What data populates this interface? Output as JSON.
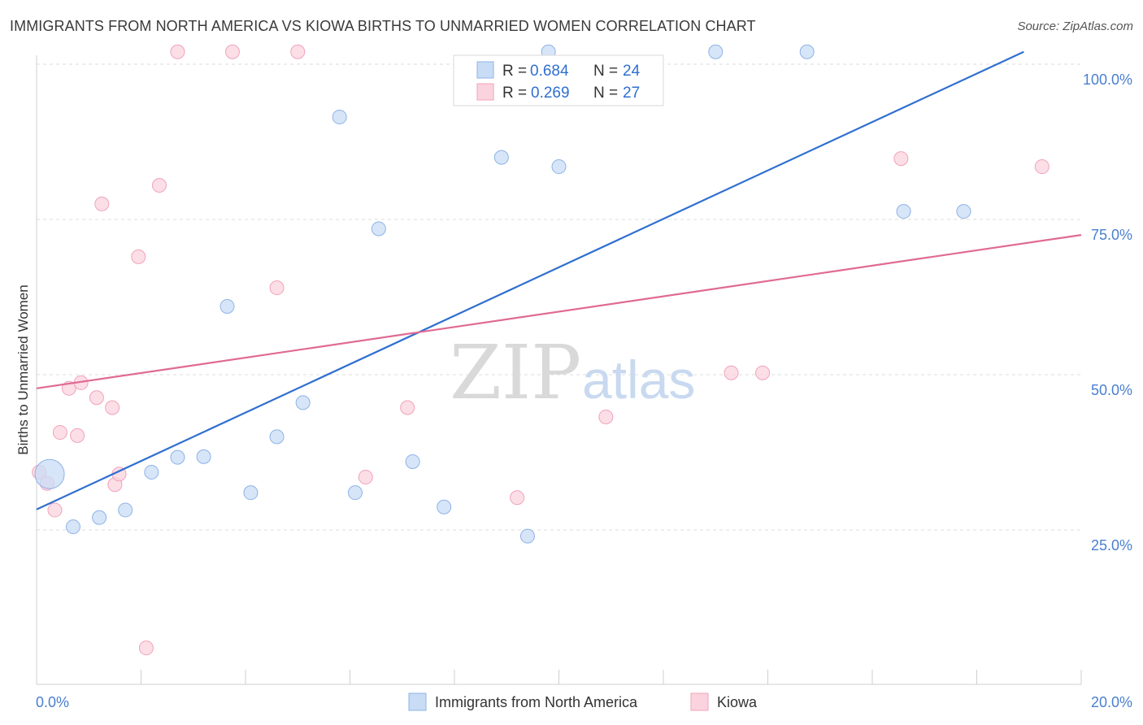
{
  "header": {
    "title": "IMMIGRANTS FROM NORTH AMERICA VS KIOWA BIRTHS TO UNMARRIED WOMEN CORRELATION CHART",
    "source": "Source: ZipAtlas.com"
  },
  "watermark": {
    "zip": "ZIP",
    "atlas": "atlas"
  },
  "legend_box": {
    "rows": [
      {
        "r_label": "R = ",
        "r_value": "0.684",
        "n_label": "N = ",
        "n_value": "24"
      },
      {
        "r_label": "R = ",
        "r_value": "0.269",
        "n_label": "N = ",
        "n_value": "27"
      }
    ]
  },
  "bottom_legend": {
    "items": [
      {
        "label": "Immigrants from North America"
      },
      {
        "label": "Kiowa"
      }
    ]
  },
  "chart_data": {
    "type": "scatter",
    "title": "IMMIGRANTS FROM NORTH AMERICA VS KIOWA BIRTHS TO UNMARRIED WOMEN CORRELATION CHART",
    "xlabel": "",
    "ylabel": "Births to Unmarried Women",
    "xlim": [
      0,
      20
    ],
    "ylim": [
      0,
      105
    ],
    "x_tick_labels": [
      {
        "value": 0,
        "label": "0.0%"
      },
      {
        "value": 20,
        "label": "20.0%"
      }
    ],
    "y_tick_labels": [
      {
        "value": 25,
        "label": "25.0%"
      },
      {
        "value": 50,
        "label": "50.0%"
      },
      {
        "value": 75,
        "label": "75.0%"
      },
      {
        "value": 100,
        "label": "100.0%"
      }
    ],
    "grid": true,
    "legend_position": "top-center",
    "colors": {
      "series_a_fill": "#c9dcf5",
      "series_a_stroke": "#8db3e6",
      "series_a_line": "#2f6fd0",
      "series_b_fill": "#fbd3df",
      "series_b_stroke": "#f0a3bb",
      "series_b_line": "#e06a93",
      "tick_label": "#4a7fd0"
    },
    "series": [
      {
        "name": "Immigrants from North America",
        "r": 0.684,
        "n": 24,
        "trend": {
          "x": [
            0,
            18.9
          ],
          "y": [
            28.3,
            102
          ]
        },
        "points": [
          {
            "x": 0.25,
            "y": 34,
            "big": true
          },
          {
            "x": 0.7,
            "y": 25.5
          },
          {
            "x": 1.2,
            "y": 27
          },
          {
            "x": 1.7,
            "y": 28.2
          },
          {
            "x": 2.2,
            "y": 34.3
          },
          {
            "x": 2.7,
            "y": 36.7
          },
          {
            "x": 3.2,
            "y": 36.8
          },
          {
            "x": 3.65,
            "y": 61
          },
          {
            "x": 4.1,
            "y": 31
          },
          {
            "x": 4.6,
            "y": 40
          },
          {
            "x": 5.1,
            "y": 45.5
          },
          {
            "x": 5.8,
            "y": 91.5
          },
          {
            "x": 6.1,
            "y": 31
          },
          {
            "x": 6.55,
            "y": 73.5
          },
          {
            "x": 7.2,
            "y": 36
          },
          {
            "x": 7.8,
            "y": 28.7
          },
          {
            "x": 8.9,
            "y": 85
          },
          {
            "x": 9.4,
            "y": 24
          },
          {
            "x": 10.0,
            "y": 83.5
          },
          {
            "x": 9.8,
            "y": 102
          },
          {
            "x": 13.0,
            "y": 102
          },
          {
            "x": 14.75,
            "y": 102
          },
          {
            "x": 16.6,
            "y": 76.3
          },
          {
            "x": 17.75,
            "y": 76.3
          }
        ]
      },
      {
        "name": "Kiowa",
        "r": 0.269,
        "n": 27,
        "trend": {
          "x": [
            0,
            20
          ],
          "y": [
            47.8,
            72.5
          ]
        },
        "points": [
          {
            "x": 0.05,
            "y": 34.3
          },
          {
            "x": 0.2,
            "y": 32.5
          },
          {
            "x": 0.35,
            "y": 28.2
          },
          {
            "x": 0.45,
            "y": 40.7
          },
          {
            "x": 0.62,
            "y": 47.8
          },
          {
            "x": 0.78,
            "y": 40.2
          },
          {
            "x": 0.85,
            "y": 48.7
          },
          {
            "x": 1.15,
            "y": 46.3
          },
          {
            "x": 1.25,
            "y": 77.5
          },
          {
            "x": 1.45,
            "y": 44.7
          },
          {
            "x": 1.5,
            "y": 32.3
          },
          {
            "x": 1.58,
            "y": 34
          },
          {
            "x": 1.95,
            "y": 69
          },
          {
            "x": 2.1,
            "y": 6
          },
          {
            "x": 2.35,
            "y": 80.5
          },
          {
            "x": 2.7,
            "y": 102
          },
          {
            "x": 3.75,
            "y": 102
          },
          {
            "x": 4.6,
            "y": 64
          },
          {
            "x": 5.0,
            "y": 102
          },
          {
            "x": 6.3,
            "y": 33.5
          },
          {
            "x": 7.1,
            "y": 44.7
          },
          {
            "x": 9.2,
            "y": 30.2
          },
          {
            "x": 10.9,
            "y": 43.2
          },
          {
            "x": 13.3,
            "y": 50.3
          },
          {
            "x": 13.9,
            "y": 50.3
          },
          {
            "x": 16.55,
            "y": 84.8
          },
          {
            "x": 19.25,
            "y": 83.5
          }
        ]
      }
    ]
  }
}
